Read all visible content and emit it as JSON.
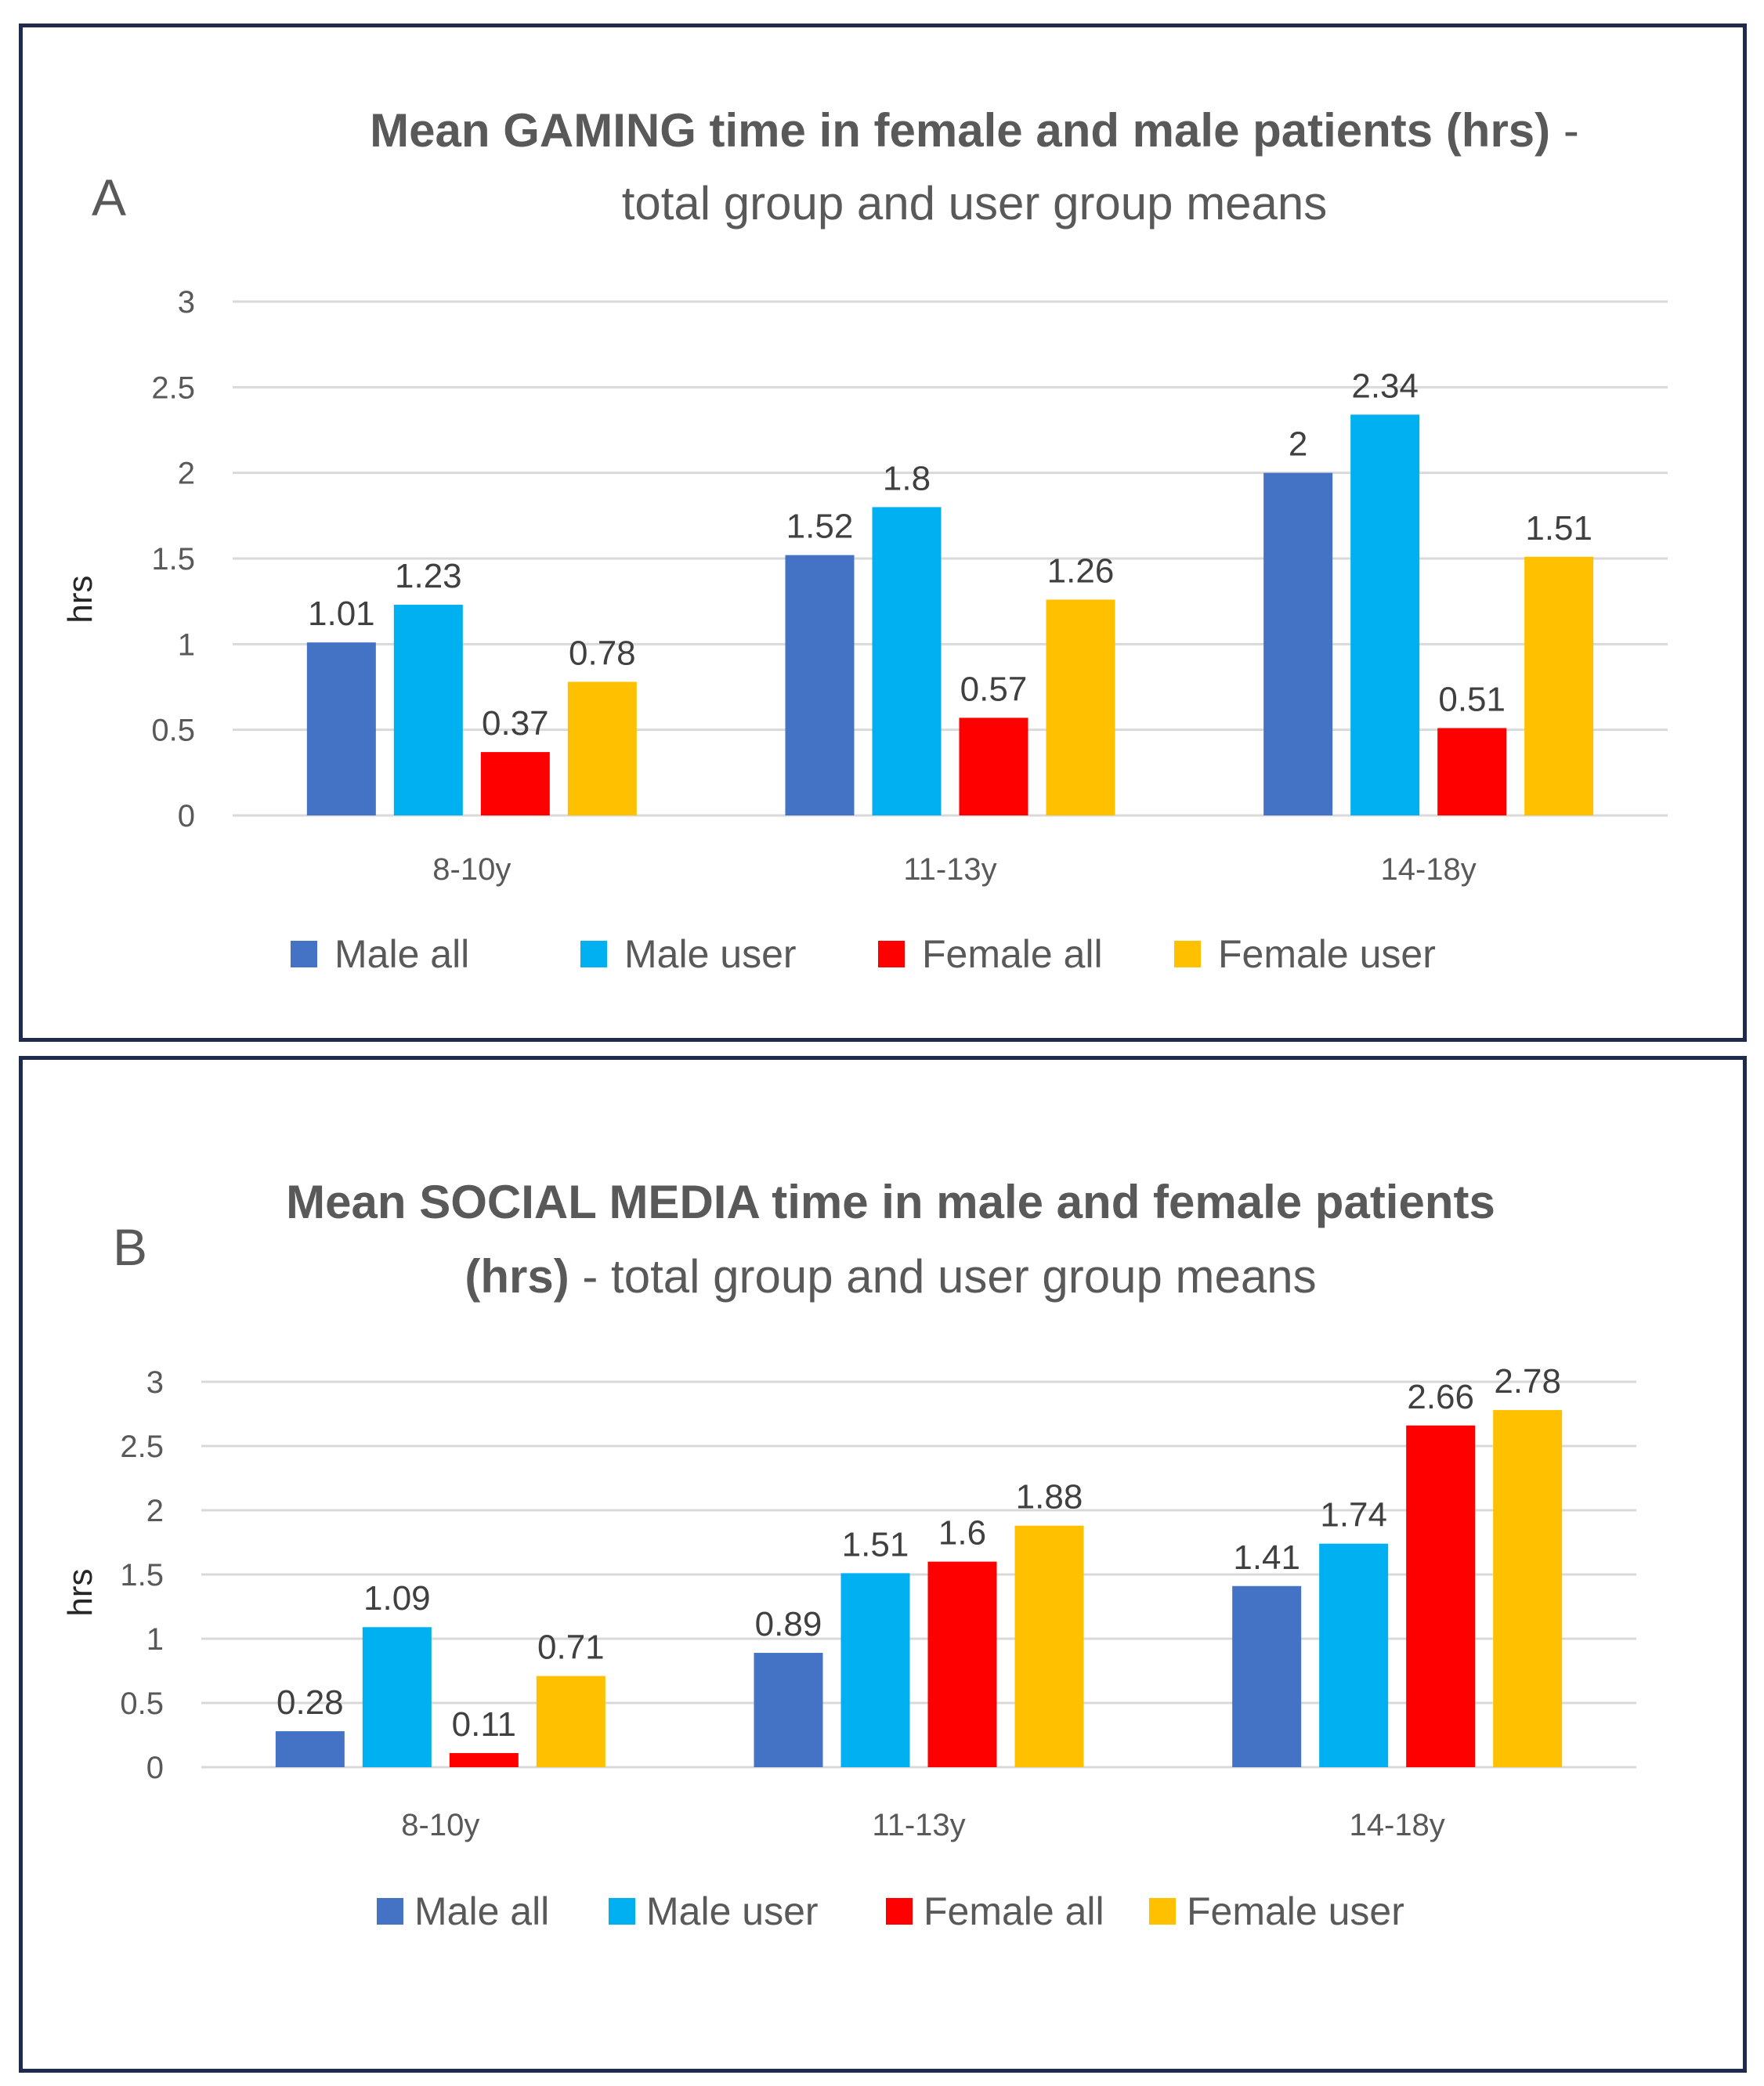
{
  "chart_data": [
    {
      "type": "bar",
      "panel_letter": "A",
      "title_bold": "Mean GAMING  time in female and male patients (hrs)",
      "title_tail": " -",
      "title_line2": "total group and user group means",
      "ylabel": "hrs",
      "xlabel": "",
      "ylim": [
        0,
        3
      ],
      "yticks": [
        "0",
        "0.5",
        "1",
        "1.5",
        "2",
        "2.5",
        "3"
      ],
      "categories": [
        "8-10y",
        "11-13y",
        "14-18y"
      ],
      "series": [
        {
          "name": "Male all",
          "color": "#4472c4",
          "values": [
            1.01,
            1.52,
            2
          ],
          "labels": [
            "1.01",
            "1.52",
            "2"
          ]
        },
        {
          "name": "Male  user",
          "color": "#00b0f0",
          "values": [
            1.23,
            1.8,
            2.34
          ],
          "labels": [
            "1.23",
            "1.8",
            "2.34"
          ]
        },
        {
          "name": "Female all",
          "color": "#ff0000",
          "values": [
            0.37,
            0.57,
            0.51
          ],
          "labels": [
            "0.37",
            "0.57",
            "0.51"
          ]
        },
        {
          "name": "Female user",
          "color": "#ffc000",
          "values": [
            0.78,
            1.26,
            1.51
          ],
          "labels": [
            "0.78",
            "1.26",
            "1.51"
          ]
        }
      ],
      "legend_position": "bottom"
    },
    {
      "type": "bar",
      "panel_letter": "B",
      "title_line1": "Mean SOCIAL MEDIA time in male and female patients",
      "title_line2_bold": "(hrs)",
      "title_line2_rest": "  - total group and user group means",
      "ylabel": "hrs",
      "xlabel": "",
      "ylim": [
        0,
        3
      ],
      "yticks": [
        "0",
        "0.5",
        "1",
        "1.5",
        "2",
        "2.5",
        "3"
      ],
      "categories": [
        "8-10y",
        "11-13y",
        "14-18y"
      ],
      "series": [
        {
          "name": "Male all",
          "color": "#4472c4",
          "values": [
            0.28,
            0.89,
            1.41
          ],
          "labels": [
            "0.28",
            "0.89",
            "1.41"
          ]
        },
        {
          "name": "Male  user",
          "color": "#00b0f0",
          "values": [
            1.09,
            1.51,
            1.74
          ],
          "labels": [
            "1.09",
            "1.51",
            "1.74"
          ]
        },
        {
          "name": "Female all",
          "color": "#ff0000",
          "values": [
            0.11,
            1.6,
            2.66
          ],
          "labels": [
            "0.11",
            "1.6",
            "2.66"
          ]
        },
        {
          "name": "Female user",
          "color": "#ffc000",
          "values": [
            0.71,
            1.88,
            2.78
          ],
          "labels": [
            "0.71",
            "1.88",
            "2.78"
          ]
        }
      ],
      "legend_position": "bottom"
    }
  ]
}
